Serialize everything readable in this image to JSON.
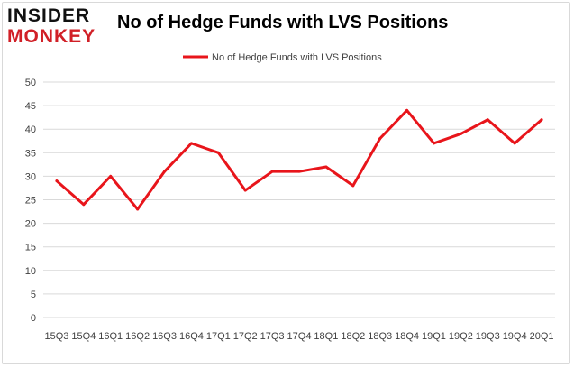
{
  "branding": {
    "logo_top": "INSIDER",
    "logo_bottom": "MONKEY"
  },
  "colors": {
    "line": "#e8151b",
    "grid": "#d9d9d9",
    "axis_text": "#404040",
    "logo_red": "#d12027"
  },
  "chart_data": {
    "type": "line",
    "title": "No of Hedge Funds with LVS Positions",
    "xlabel": "",
    "ylabel": "",
    "ylim": [
      0,
      50
    ],
    "yticks": [
      0,
      5,
      10,
      15,
      20,
      25,
      30,
      35,
      40,
      45,
      50
    ],
    "grid": "horizontal",
    "legend_position": "top",
    "categories": [
      "15Q3",
      "15Q4",
      "16Q1",
      "16Q2",
      "16Q3",
      "16Q4",
      "17Q1",
      "17Q2",
      "17Q3",
      "17Q4",
      "18Q1",
      "18Q2",
      "18Q3",
      "18Q4",
      "19Q1",
      "19Q2",
      "19Q3",
      "19Q4",
      "20Q1"
    ],
    "series": [
      {
        "name": "No of Hedge Funds with LVS Positions",
        "values": [
          29,
          24,
          30,
          23,
          31,
          37,
          35,
          27,
          31,
          31,
          32,
          28,
          38,
          44,
          37,
          39,
          42,
          37,
          42
        ]
      }
    ]
  }
}
